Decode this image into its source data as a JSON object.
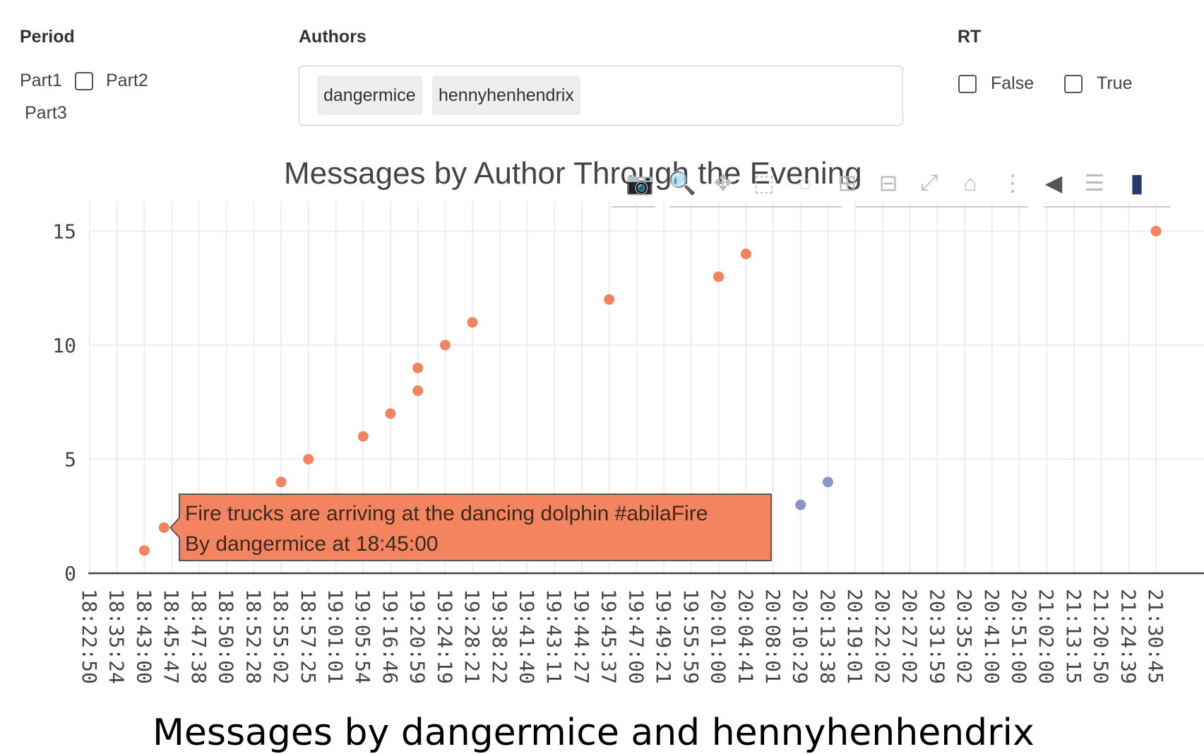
{
  "filters": {
    "period": {
      "title": "Period",
      "options": [
        {
          "label": "Part1",
          "checked": false
        },
        {
          "label": "Part2",
          "checked": false
        },
        {
          "label": "Part3",
          "checked": false
        }
      ]
    },
    "authors": {
      "title": "Authors",
      "selected": [
        "dangermice",
        "hennyhenhendrix"
      ]
    },
    "rt": {
      "title": "RT",
      "options": [
        {
          "label": "False",
          "checked": false
        },
        {
          "label": "True",
          "checked": false
        }
      ]
    }
  },
  "chart_data": {
    "type": "scatter",
    "title": "Messages by Author Through the Evening",
    "xlabel": "",
    "ylabel": "",
    "ylim": [
      0,
      16
    ],
    "yticks": [
      0,
      5,
      10,
      15
    ],
    "grid": true,
    "categories": [
      "18:22:50",
      "18:35:24",
      "18:43:00",
      "18:45:47",
      "18:47:38",
      "18:50:00",
      "18:52:28",
      "18:55:02",
      "18:57:25",
      "19:01:01",
      "19:05:54",
      "19:16:46",
      "19:20:59",
      "19:24:19",
      "19:28:21",
      "19:38:22",
      "19:41:40",
      "19:43:11",
      "19:44:27",
      "19:45:37",
      "19:47:00",
      "19:49:21",
      "19:55:59",
      "20:01:00",
      "20:04:41",
      "20:08:01",
      "20:10:29",
      "20:13:38",
      "20:19:01",
      "20:22:02",
      "20:27:02",
      "20:31:59",
      "20:35:02",
      "20:41:00",
      "20:51:00",
      "21:02:00",
      "21:13:15",
      "21:20:50",
      "21:24:39",
      "21:30:45"
    ],
    "series": [
      {
        "color": "#f4845f",
        "points": [
          {
            "x": "18:43:00",
            "y": 1
          },
          {
            "x": "18:45:00",
            "y": 2
          },
          {
            "x": "18:55:02",
            "y": 4
          },
          {
            "x": "18:57:25",
            "y": 5
          },
          {
            "x": "19:05:54",
            "y": 6
          },
          {
            "x": "19:16:46",
            "y": 7
          },
          {
            "x": "19:20:59",
            "y": 8
          },
          {
            "x": "19:20:59",
            "y": 9
          },
          {
            "x": "19:24:19",
            "y": 10
          },
          {
            "x": "19:28:21",
            "y": 11
          },
          {
            "x": "19:45:37",
            "y": 12
          },
          {
            "x": "20:01:00",
            "y": 13
          },
          {
            "x": "20:04:41",
            "y": 14
          },
          {
            "x": "21:30:45",
            "y": 15
          }
        ]
      },
      {
        "color": "#8b93c8",
        "points": [
          {
            "x": "20:10:29",
            "y": 3
          },
          {
            "x": "20:13:38",
            "y": 4
          }
        ]
      }
    ],
    "tooltip": {
      "line1": "Fire trucks are arriving at the dancing dolphin #abilaFire",
      "line2": "By  dangermice  at  18:45:00",
      "color": "#f4845f"
    }
  },
  "modebar": {
    "icons": [
      "camera-icon",
      "zoom-icon",
      "pan-icon",
      "box-select-icon",
      "lasso-icon",
      "zoom-in-icon",
      "zoom-out-icon",
      "autoscale-icon",
      "home-icon",
      "spike-lines-icon",
      "hover-closest-icon",
      "hover-compare-icon",
      "plotly-logo-icon"
    ]
  },
  "caption": "Messages by dangermice and hennyhenhendrix"
}
